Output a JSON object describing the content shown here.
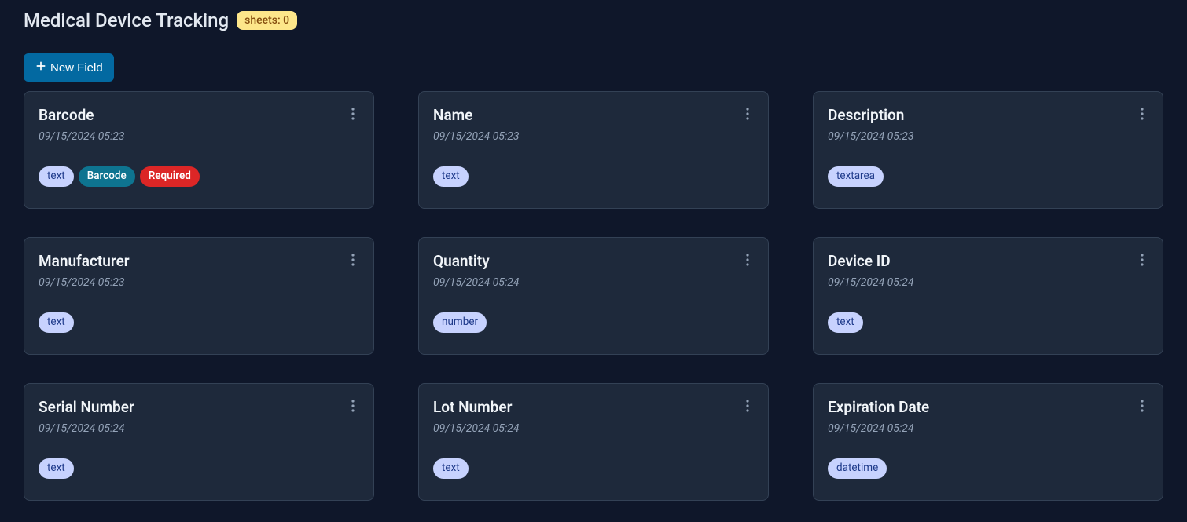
{
  "header": {
    "title": "Medical Device Tracking",
    "sheets_badge": "sheets: 0",
    "new_field_label": "New Field"
  },
  "colors": {
    "bg": "#0f172a",
    "card_bg": "#1e293b",
    "card_border": "#334155",
    "text_primary": "#e2e8f0",
    "text_muted": "#94a3b8",
    "btn_primary_bg": "#0369a1",
    "sheets_badge_bg": "#fde68a",
    "sheets_badge_fg": "#854d0e",
    "badge_type_bg": "#c7d2fe",
    "badge_type_fg": "#1e3a8a",
    "badge_barcode_bg": "#0e7490",
    "badge_required_bg": "#dc2626"
  },
  "cards": [
    {
      "title": "Barcode",
      "timestamp": "09/15/2024 05:23",
      "type": "text",
      "barcode": true,
      "required": true
    },
    {
      "title": "Name",
      "timestamp": "09/15/2024 05:23",
      "type": "text",
      "barcode": false,
      "required": false
    },
    {
      "title": "Description",
      "timestamp": "09/15/2024 05:23",
      "type": "textarea",
      "barcode": false,
      "required": false
    },
    {
      "title": "Manufacturer",
      "timestamp": "09/15/2024 05:23",
      "type": "text",
      "barcode": false,
      "required": false
    },
    {
      "title": "Quantity",
      "timestamp": "09/15/2024 05:24",
      "type": "number",
      "barcode": false,
      "required": false
    },
    {
      "title": "Device ID",
      "timestamp": "09/15/2024 05:24",
      "type": "text",
      "barcode": false,
      "required": false
    },
    {
      "title": "Serial Number",
      "timestamp": "09/15/2024 05:24",
      "type": "text",
      "barcode": false,
      "required": false
    },
    {
      "title": "Lot Number",
      "timestamp": "09/15/2024 05:24",
      "type": "text",
      "barcode": false,
      "required": false
    },
    {
      "title": "Expiration Date",
      "timestamp": "09/15/2024 05:24",
      "type": "datetime",
      "barcode": false,
      "required": false
    }
  ],
  "labels": {
    "barcode_badge": "Barcode",
    "required_badge": "Required"
  }
}
